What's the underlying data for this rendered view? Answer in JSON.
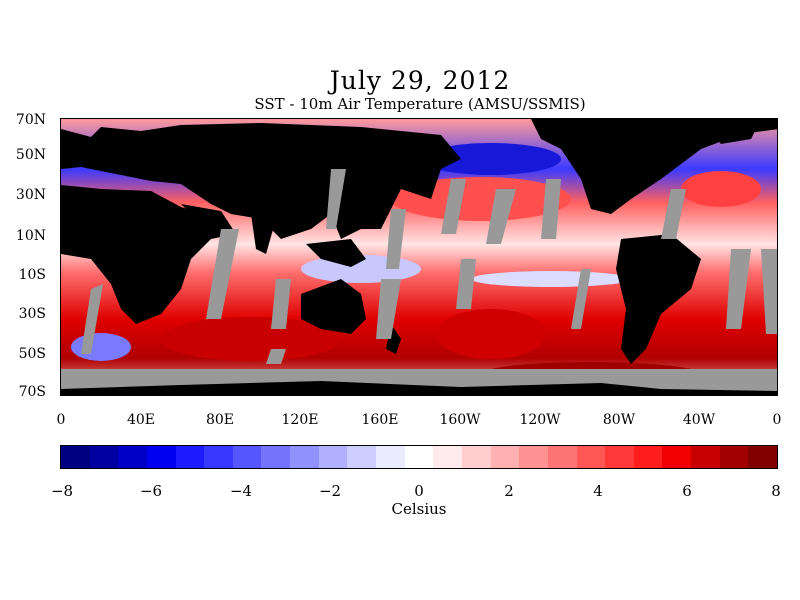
{
  "header": {
    "title": "July 29, 2012",
    "subtitle": "SST - 10m Air Temperature (AMSU/SSMIS)"
  },
  "map": {
    "lat_labels": [
      "70N",
      "50N",
      "30N",
      "10N",
      "10S",
      "30S",
      "50S",
      "70S"
    ],
    "lon_labels": [
      "0",
      "40E",
      "80E",
      "120E",
      "160E",
      "160W",
      "120W",
      "80W",
      "40W",
      "0"
    ],
    "colors": {
      "land": "#000000",
      "no_data": "#999999",
      "ocean_neutral": "#ffffff"
    }
  },
  "colorbar": {
    "tick_labels": [
      "−8",
      "−6",
      "−4",
      "−2",
      "0",
      "2",
      "4",
      "6",
      "8"
    ],
    "range": [
      -8,
      8
    ],
    "units": "Celsius",
    "colors": [
      "#000080",
      "#0000a0",
      "#0000c8",
      "#0000f0",
      "#1c1cff",
      "#3838ff",
      "#5656ff",
      "#7474ff",
      "#9292ff",
      "#b0b0ff",
      "#cdcdff",
      "#ebebff",
      "#ffffff",
      "#ffebeb",
      "#ffcdcd",
      "#ffb0b0",
      "#ff9292",
      "#ff7474",
      "#ff5656",
      "#ff3838",
      "#ff1c1c",
      "#f00000",
      "#c80000",
      "#a00000",
      "#800000"
    ]
  }
}
